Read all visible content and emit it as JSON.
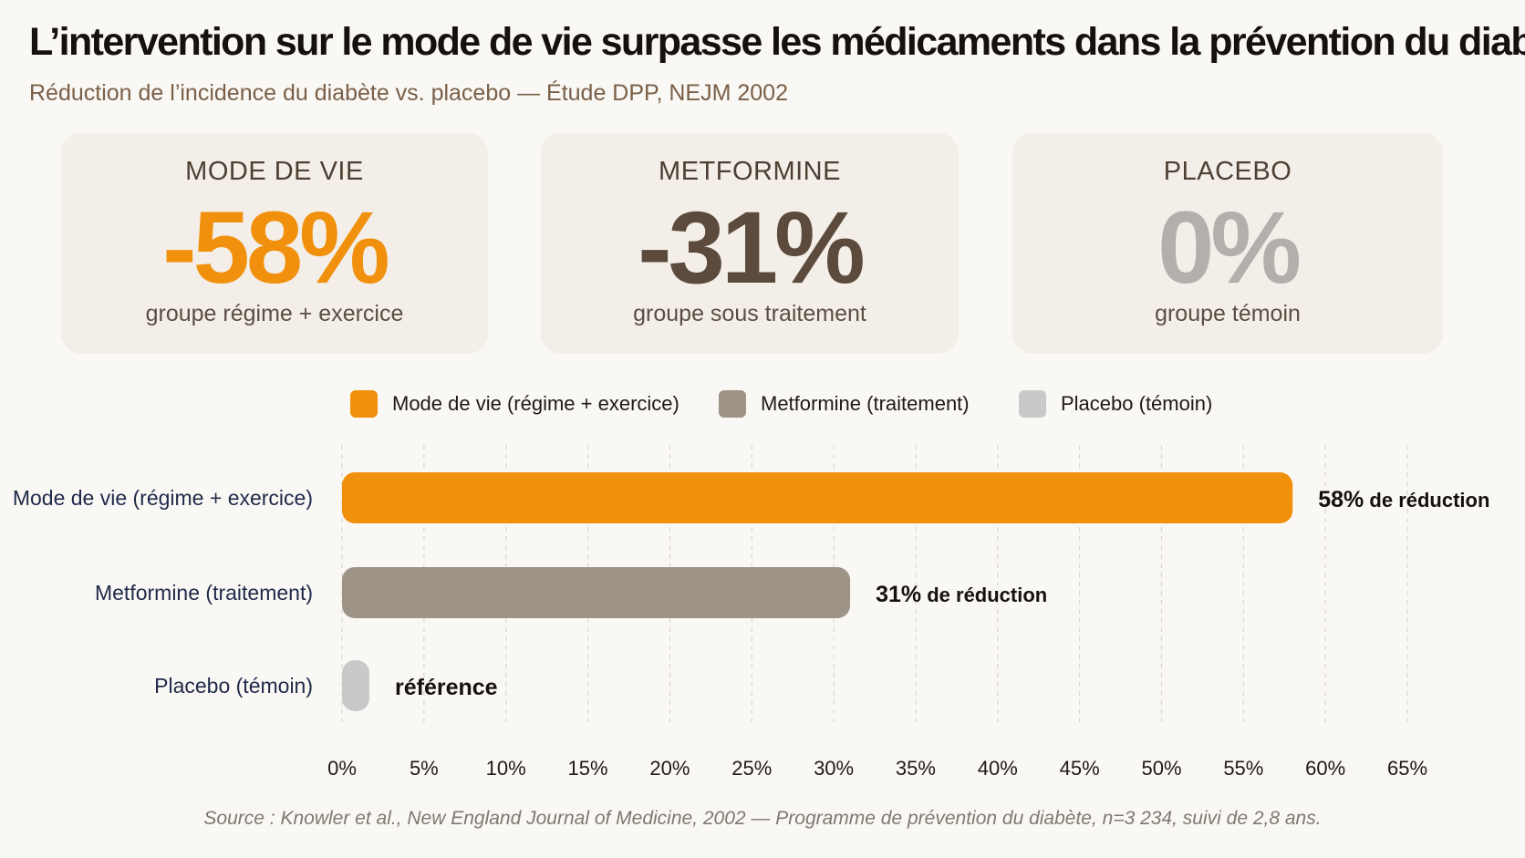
{
  "title": "L’intervention sur le mode de vie surpasse les médicaments dans la prévention du diabète",
  "subtitle": "Réduction de l’incidence du diabète vs. placebo — Étude DPP, NEJM 2002",
  "cards": [
    {
      "label": "MODE DE VIE",
      "value": "-58%",
      "sub": "groupe régime + exercice",
      "color": "#f0900c"
    },
    {
      "label": "METFORMINE",
      "value": "-31%",
      "sub": "groupe sous traitement",
      "color": "#5c4a3c"
    },
    {
      "label": "PLACEBO",
      "value": "0%",
      "sub": "groupe témoin",
      "color": "#b2afac"
    }
  ],
  "legend": [
    {
      "label": "Mode de vie (régime + exercice)",
      "color": "#f0900c"
    },
    {
      "label": "Metformine (traitement)",
      "color": "#9d9386"
    },
    {
      "label": "Placebo (témoin)",
      "color": "#c9c9c9"
    }
  ],
  "chart_data": {
    "type": "bar",
    "orientation": "horizontal",
    "categories": [
      "Mode de vie (régime + exercice)",
      "Metformine (traitement)",
      "Placebo (témoin)"
    ],
    "values": [
      58,
      31,
      0
    ],
    "value_labels": [
      {
        "bold": "58%",
        "rest": " de réduction"
      },
      {
        "bold": "31%",
        "rest": " de réduction"
      },
      {
        "bold": "référence",
        "rest": ""
      }
    ],
    "colors": [
      "#f0900c",
      "#9d9386",
      "#c9c9c9"
    ],
    "xlim": [
      0,
      65
    ],
    "xticks": [
      0,
      5,
      10,
      15,
      20,
      25,
      30,
      35,
      40,
      45,
      50,
      55,
      60,
      65
    ],
    "tick_labels": [
      "0%",
      "5%",
      "10%",
      "15%",
      "20%",
      "25%",
      "30%",
      "35%",
      "40%",
      "45%",
      "50%",
      "55%",
      "60%",
      "65%"
    ],
    "grid": true
  },
  "source": "Source : Knowler et al., New England Journal of Medicine, 2002 — Programme de prévention du diabète, n=3 234, suivi de 2,8 ans."
}
